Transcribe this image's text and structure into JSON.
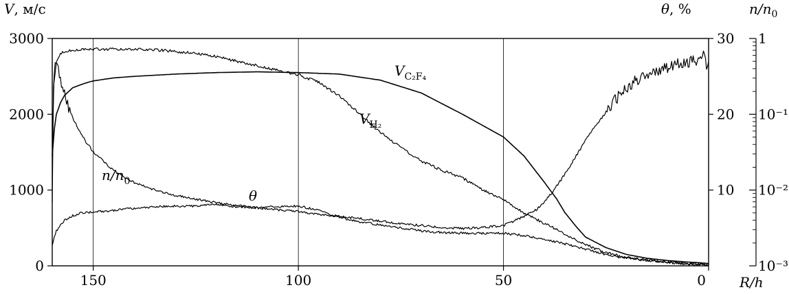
{
  "chart_data": {
    "type": "line",
    "x_axis": {
      "label": "R/h",
      "range": [
        160,
        0
      ],
      "ticks": [
        150,
        100,
        50,
        0
      ],
      "tick_labels": [
        "150",
        "100",
        "50",
        "0"
      ],
      "gridlines_at": [
        150,
        100,
        50
      ]
    },
    "y_left": {
      "label": "V, м/с",
      "range": [
        0,
        3000
      ],
      "ticks": [
        0,
        1000,
        2000,
        3000
      ],
      "tick_labels": [
        "0",
        "1000",
        "2000",
        "3000"
      ]
    },
    "y_right_theta": {
      "label": "θ, %",
      "range": [
        0,
        30
      ],
      "ticks": [
        10,
        20,
        30
      ],
      "tick_labels": [
        "10",
        "20",
        "30"
      ]
    },
    "y_right_density": {
      "label": "n/n₀",
      "scale": "log",
      "range": [
        0.001,
        1
      ],
      "ticks": [
        0.001,
        0.01,
        0.1,
        1
      ],
      "tick_labels": [
        "10⁻³",
        "10⁻²",
        "10⁻¹",
        "1"
      ]
    },
    "series": [
      {
        "name": "V_C2F4",
        "label": "V",
        "sub": "C₂F₄",
        "axis": "left",
        "noise": 0,
        "x": [
          160,
          159.5,
          159,
          158,
          157,
          155,
          152,
          150,
          145,
          140,
          130,
          120,
          110,
          100,
          90,
          80,
          70,
          60,
          55,
          50,
          45,
          40,
          37,
          35,
          32,
          30,
          25,
          20,
          15,
          10,
          5,
          2,
          0
        ],
        "y": [
          1450,
          1800,
          2000,
          2150,
          2250,
          2350,
          2410,
          2440,
          2480,
          2500,
          2530,
          2550,
          2560,
          2550,
          2530,
          2450,
          2280,
          2000,
          1850,
          1700,
          1450,
          1100,
          880,
          700,
          500,
          380,
          240,
          150,
          100,
          70,
          50,
          40,
          30
        ]
      },
      {
        "name": "V_H2",
        "label": "V",
        "sub": "H₂",
        "axis": "left",
        "noise": 18,
        "x": [
          160,
          159.6,
          159,
          158,
          157,
          155,
          150,
          145,
          140,
          135,
          130,
          125,
          120,
          115,
          110,
          105,
          100,
          95,
          90,
          85,
          80,
          75,
          70,
          65,
          60,
          55,
          50,
          45,
          40,
          35,
          30,
          25,
          20,
          15,
          10,
          5,
          0
        ],
        "y": [
          1600,
          2400,
          2700,
          2800,
          2830,
          2850,
          2860,
          2860,
          2860,
          2850,
          2830,
          2800,
          2760,
          2700,
          2640,
          2580,
          2520,
          2420,
          2240,
          2000,
          1760,
          1560,
          1380,
          1260,
          1160,
          1000,
          870,
          700,
          560,
          420,
          280,
          170,
          110,
          80,
          50,
          25,
          10
        ]
      },
      {
        "name": "theta",
        "label": "θ",
        "sub": "",
        "axis": "right_theta",
        "noise": 0.15,
        "x": [
          160,
          159.5,
          159,
          158,
          157,
          155,
          153,
          150,
          145,
          140,
          135,
          130,
          125,
          120,
          115,
          110,
          105,
          100,
          95,
          90,
          85,
          80,
          75,
          70,
          65,
          60,
          55,
          50,
          45,
          40,
          35,
          30,
          25,
          20,
          15,
          10,
          5,
          0
        ],
        "y": [
          2.8,
          3.8,
          4.6,
          5.4,
          6.0,
          6.6,
          7.0,
          7.1,
          7.3,
          7.6,
          7.8,
          7.9,
          7.9,
          8.1,
          7.8,
          7.7,
          7.8,
          7.9,
          7.3,
          6.4,
          5.8,
          5.4,
          5.0,
          4.6,
          4.4,
          4.3,
          4.3,
          4.3,
          4.0,
          3.5,
          2.9,
          2.2,
          1.5,
          1.0,
          0.7,
          0.5,
          0.3,
          0.2
        ]
      },
      {
        "name": "n/n0",
        "label": "n/n",
        "sub": "0",
        "axis": "right_density",
        "noise": 0.03,
        "x": [
          160,
          159.7,
          159.3,
          159,
          158.5,
          158,
          157,
          156,
          155,
          154,
          152,
          150,
          145,
          140,
          135,
          130,
          120,
          110,
          100,
          95,
          90,
          85,
          80,
          75,
          70,
          65,
          60,
          55,
          50,
          47,
          45,
          42,
          40,
          38,
          36,
          34,
          32,
          30,
          28,
          26,
          24,
          22,
          20,
          18,
          15,
          12,
          10,
          8,
          6,
          4,
          2,
          1,
          0.5,
          0
        ],
        "y": [
          0.007,
          0.22,
          0.5,
          0.45,
          0.4,
          0.3,
          0.19,
          0.12,
          0.09,
          0.07,
          0.045,
          0.032,
          0.018,
          0.0125,
          0.01,
          0.0085,
          0.0068,
          0.0058,
          0.0052,
          0.0048,
          0.0045,
          0.0042,
          0.0039,
          0.0036,
          0.0034,
          0.0032,
          0.0031,
          0.0032,
          0.0034,
          0.004,
          0.0045,
          0.0055,
          0.007,
          0.0095,
          0.0135,
          0.02,
          0.03,
          0.045,
          0.065,
          0.09,
          0.13,
          0.17,
          0.22,
          0.27,
          0.33,
          0.38,
          0.42,
          0.45,
          0.47,
          0.5,
          0.52,
          0.6,
          0.45,
          0.5
        ]
      }
    ],
    "annotations": {
      "v_c2f4": {
        "text": "V",
        "sub": "C₂F₄"
      },
      "v_h2": {
        "text": "V",
        "sub": "H₂"
      },
      "n_n0": {
        "text": "n/n",
        "sub": "0"
      },
      "theta": {
        "text": "θ"
      }
    }
  }
}
